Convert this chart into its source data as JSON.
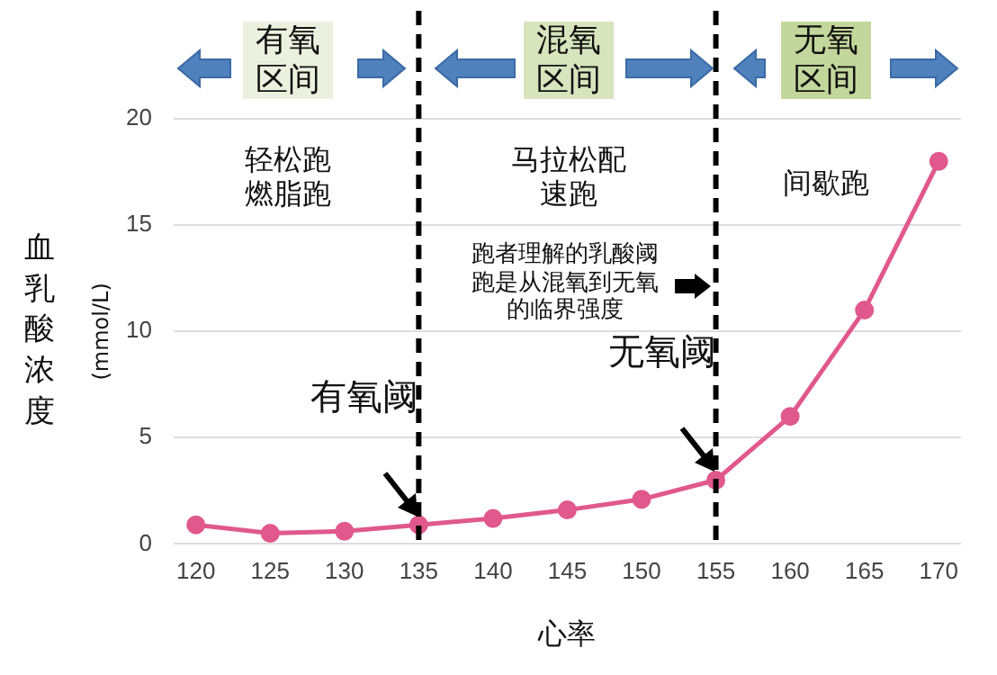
{
  "chart_data": {
    "type": "line",
    "xlabel": "心率",
    "ylabel": "血乳酸浓度\n(mmol/L)",
    "x": [
      120,
      125,
      130,
      135,
      140,
      145,
      150,
      155,
      160,
      165,
      170
    ],
    "series": [
      {
        "values": [
          0.9,
          0.5,
          0.6,
          0.9,
          1.2,
          1.6,
          2.1,
          3,
          6,
          11,
          18
        ],
        "color": "#e0588c"
      }
    ],
    "xlim": [
      118.5,
      171.5
    ],
    "xticks": [
      120,
      125,
      130,
      135,
      140,
      145,
      150,
      155,
      160,
      165,
      170
    ],
    "ylim": [
      0,
      20
    ],
    "yticks": [
      0,
      5,
      10,
      15,
      20
    ],
    "grid": "y",
    "legend": false,
    "marker": "circle",
    "line_style": "solid",
    "ref_lines": [
      {
        "axis": "x",
        "value": 135,
        "color": "#000000",
        "line_style": "dashed"
      },
      {
        "axis": "x",
        "value": 155,
        "color": "#000000",
        "line_style": "dashed"
      }
    ],
    "annotations": [
      "有氧区间",
      "混氧区间",
      "无氧区间",
      "轻松跑燃脂跑",
      "马拉松配速跑",
      "间歇跑",
      "跑者理解的乳酸阈跑是从混氧到无氧的临界强度",
      {
        "text": "有氧阈",
        "x": 135,
        "y": 0.9
      },
      {
        "text": "无氧阈",
        "x": 155,
        "y": 3
      }
    ]
  }
}
